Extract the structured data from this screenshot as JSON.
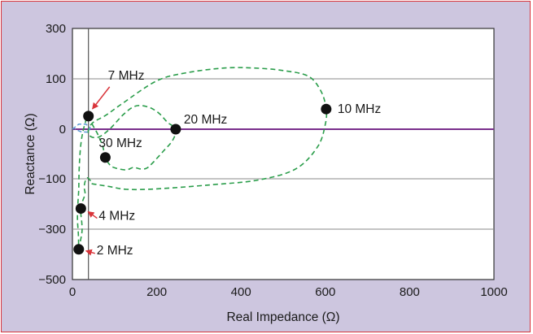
{
  "chart_data": {
    "type": "scatter",
    "title": "",
    "xlabel": "Real Impedance (Ω)",
    "ylabel": "Reactance (Ω)",
    "xlim": [
      0,
      1000
    ],
    "ylim": [
      -500,
      300
    ],
    "x_ticks": [
      "0",
      "200",
      "400",
      "600",
      "800",
      "1000"
    ],
    "y_ticks": [
      "300",
      "100",
      "0",
      "-100",
      "-300",
      "-500"
    ],
    "y_tick_display": [
      "300",
      "100",
      "0",
      "−100",
      "−300",
      "−500"
    ],
    "grid": true,
    "legend": "none",
    "reference_line_y": 0,
    "reference_line_x": 38,
    "colors": {
      "trace": "#2a9d4a",
      "zero_line": "#7a2f8c",
      "blue_segment": "#5b9bd5",
      "arrow": "#d9343a",
      "point": "#111111",
      "frame_border": "#d9343a",
      "frame_bg": "#cdc6df"
    },
    "points": [
      {
        "label": "2 MHz",
        "x": 15,
        "y": -380
      },
      {
        "label": "4 MHz",
        "x": 20,
        "y": -218
      },
      {
        "label": "7 MHz",
        "x": 38,
        "y": 26
      },
      {
        "label": "10 MHz",
        "x": 602,
        "y": 40
      },
      {
        "label": "20 MHz",
        "x": 245,
        "y": 0
      },
      {
        "label": "30 MHz",
        "x": 78,
        "y": -57
      }
    ],
    "curve": [
      [
        15,
        -380
      ],
      [
        18,
        -355
      ],
      [
        22,
        -320
      ],
      [
        23,
        -300
      ],
      [
        22,
        -270
      ],
      [
        20,
        -240
      ],
      [
        20,
        -218
      ],
      [
        24,
        -190
      ],
      [
        30,
        -160
      ],
      [
        28,
        -135
      ],
      [
        30,
        -112
      ],
      [
        35,
        -98
      ],
      [
        42,
        -106
      ],
      [
        44,
        -118
      ],
      [
        55,
        -122
      ],
      [
        85,
        -130
      ],
      [
        130,
        -142
      ],
      [
        200,
        -140
      ],
      [
        320,
        -125
      ],
      [
        440,
        -105
      ],
      [
        530,
        -80
      ],
      [
        582,
        -35
      ],
      [
        600,
        10
      ],
      [
        602,
        40
      ],
      [
        590,
        75
      ],
      [
        560,
        110
      ],
      [
        500,
        133
      ],
      [
        430,
        143
      ],
      [
        360,
        143
      ],
      [
        270,
        124
      ],
      [
        200,
        96
      ],
      [
        120,
        52
      ],
      [
        80,
        28
      ],
      [
        50,
        14
      ],
      [
        38,
        0
      ],
      [
        42,
        -14
      ],
      [
        62,
        -16
      ],
      [
        88,
        0
      ],
      [
        122,
        30
      ],
      [
        150,
        46
      ],
      [
        180,
        44
      ],
      [
        205,
        32
      ],
      [
        225,
        14
      ],
      [
        245,
        0
      ],
      [
        238,
        -22
      ],
      [
        215,
        -45
      ],
      [
        188,
        -70
      ],
      [
        175,
        -79
      ],
      [
        160,
        -80
      ],
      [
        145,
        -77
      ],
      [
        128,
        -82
      ],
      [
        105,
        -79
      ],
      [
        90,
        -73
      ],
      [
        78,
        -57
      ],
      [
        72,
        -35
      ],
      [
        60,
        -10
      ],
      [
        48,
        8
      ],
      [
        38,
        26
      ],
      [
        28,
        6
      ],
      [
        20,
        -30
      ],
      [
        16,
        -80
      ],
      [
        15,
        -140
      ],
      [
        13,
        -200
      ],
      [
        12,
        -260
      ],
      [
        14,
        -320
      ],
      [
        15,
        -380
      ]
    ],
    "blue_segment": [
      [
        0,
        0
      ],
      [
        15,
        10
      ],
      [
        32,
        10
      ],
      [
        42,
        3
      ],
      [
        38,
        -6
      ],
      [
        20,
        -5
      ],
      [
        6,
        0
      ]
    ]
  }
}
